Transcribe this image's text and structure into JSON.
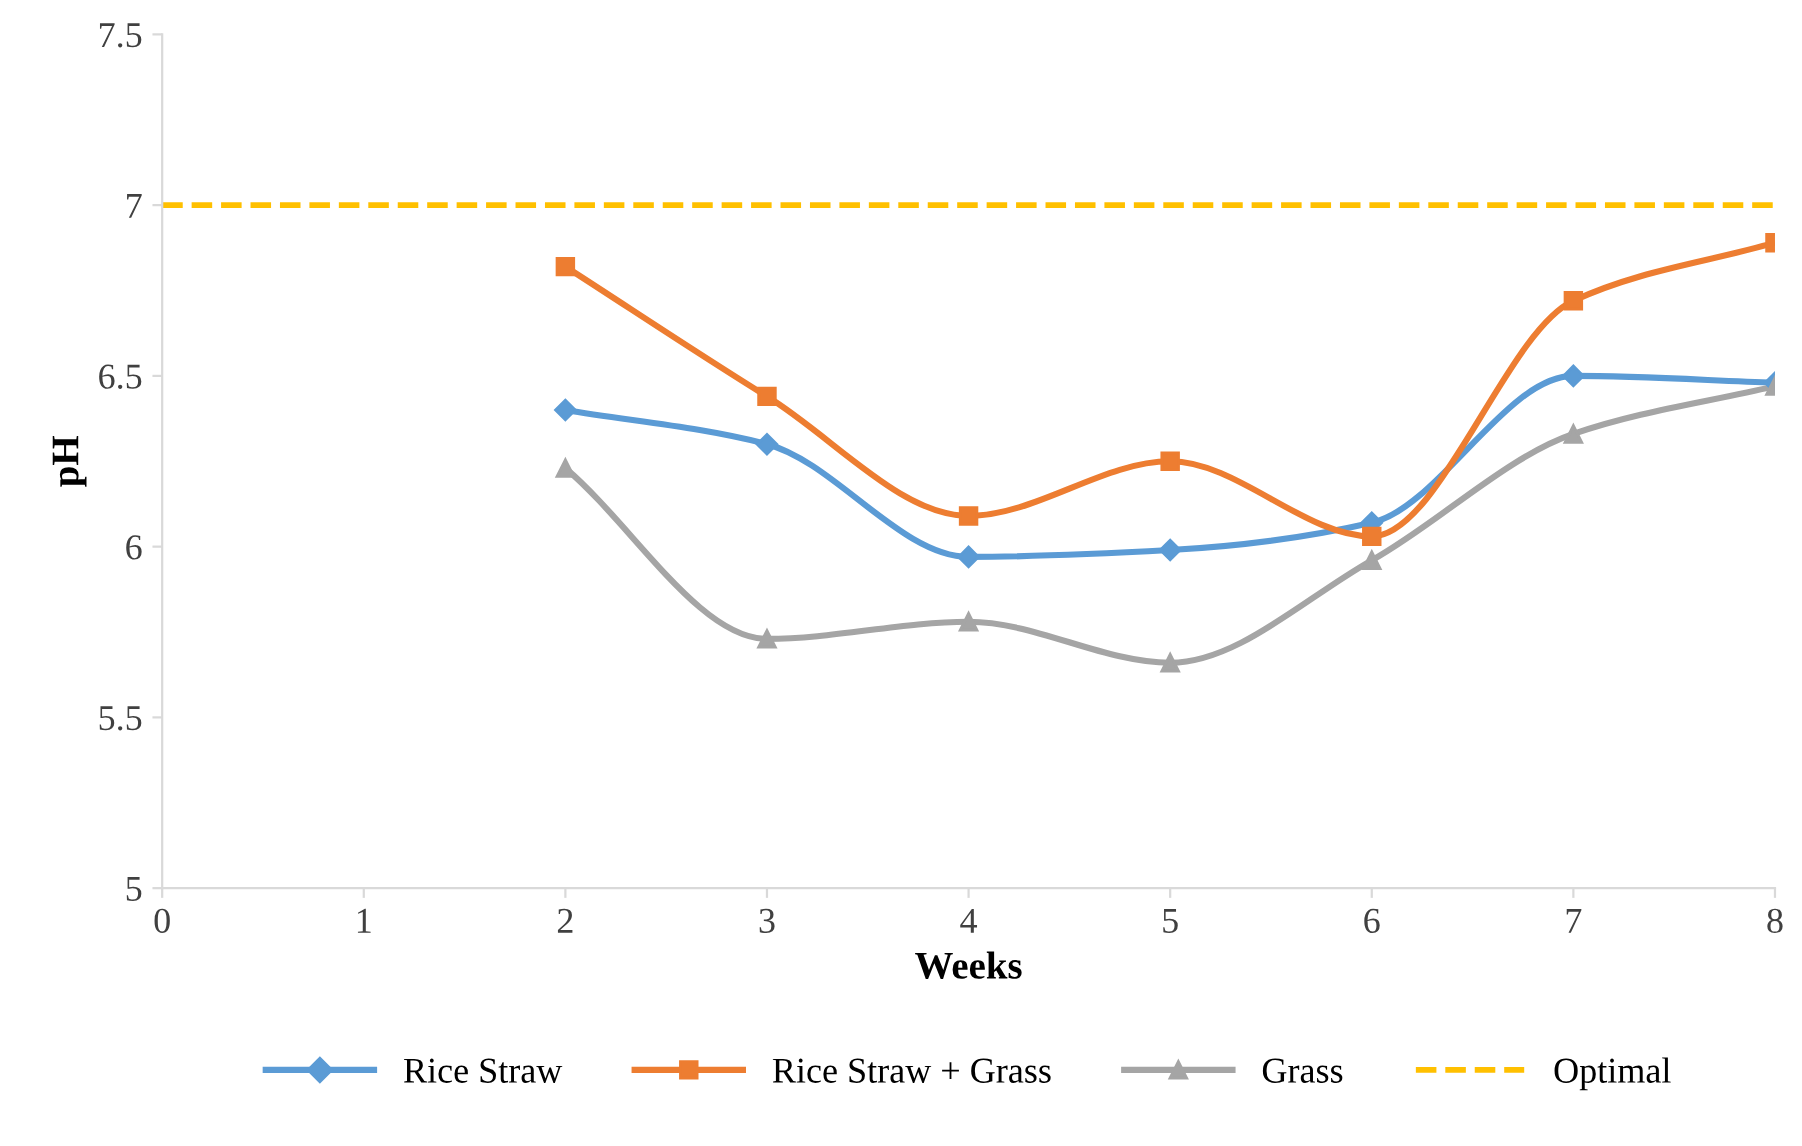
{
  "chart_data": {
    "type": "line",
    "xlabel": "Weeks",
    "ylabel": "pH",
    "x": [
      2,
      3,
      4,
      5,
      6,
      7,
      8
    ],
    "series": [
      {
        "name": "Rice Straw",
        "color": "#5b9bd5",
        "marker": "diamond",
        "values": [
          6.4,
          6.3,
          5.97,
          5.99,
          6.07,
          6.5,
          6.48
        ]
      },
      {
        "name": "Rice Straw + Grass",
        "color": "#ed7d31",
        "marker": "square",
        "values": [
          6.82,
          6.44,
          6.09,
          6.25,
          6.03,
          6.72,
          6.89
        ]
      },
      {
        "name": "Grass",
        "color": "#a5a5a5",
        "marker": "triangle",
        "values": [
          6.23,
          5.73,
          5.78,
          5.66,
          5.96,
          6.33,
          6.47
        ]
      }
    ],
    "ref_lines": [
      {
        "axis": "y",
        "value": 7,
        "label": "Optimal",
        "color": "#ffc000",
        "line_style": "dashed"
      }
    ],
    "xlim": [
      0,
      8
    ],
    "xticks": [
      0,
      1,
      2,
      3,
      4,
      5,
      6,
      7,
      8
    ],
    "ylim": [
      5,
      7.5
    ],
    "yticks": [
      5,
      5.5,
      6,
      6.5,
      7,
      7.5
    ],
    "grid": false,
    "legend": "bottom",
    "line_style": "solid"
  }
}
